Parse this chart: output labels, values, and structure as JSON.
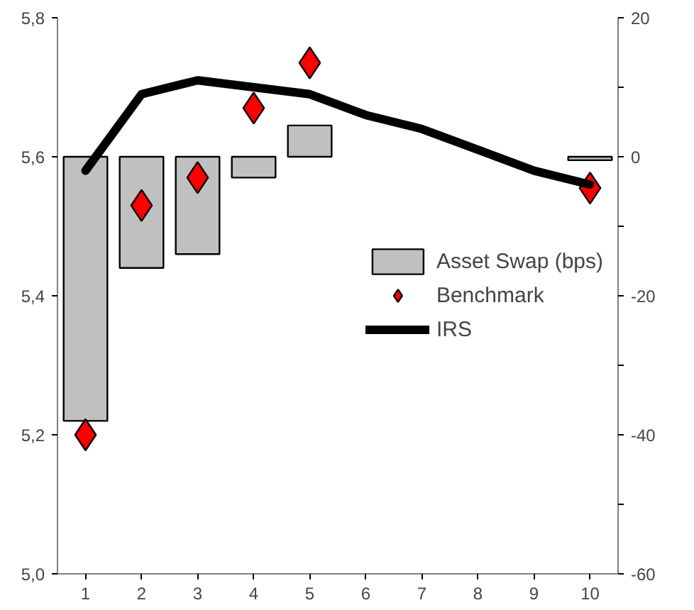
{
  "chart_data": {
    "type": "bar",
    "categories": [
      "1",
      "2",
      "3",
      "4",
      "5",
      "6",
      "7",
      "8",
      "9",
      "10"
    ],
    "series": [
      {
        "name": "Asset Swap (bps)",
        "axis": "y2",
        "color": "#c0c0c0",
        "values": [
          -38,
          -16,
          -14,
          -3,
          4.5,
          null,
          null,
          null,
          null,
          -0.5
        ]
      },
      {
        "name": "Benchmark",
        "type": "scatter",
        "marker": "diamond",
        "color": "#ff0000",
        "values": [
          5.2,
          5.53,
          5.57,
          5.67,
          5.735,
          null,
          null,
          null,
          null,
          5.555
        ]
      },
      {
        "name": "IRS",
        "type": "line",
        "color": "#000000",
        "values": [
          5.58,
          5.69,
          5.71,
          5.7,
          5.69,
          5.66,
          5.64,
          5.61,
          5.58,
          5.56
        ]
      }
    ],
    "ylim": [
      5.0,
      5.8
    ],
    "yticks": [
      {
        "value": 5.0,
        "label": "5,0"
      },
      {
        "value": 5.2,
        "label": "5,2"
      },
      {
        "value": 5.4,
        "label": "5,4"
      },
      {
        "value": 5.6,
        "label": "5,6"
      },
      {
        "value": 5.8,
        "label": "5,8"
      }
    ],
    "y2lim": [
      -60,
      20
    ],
    "y2ticks": [
      -60,
      {
        "value": -50,
        "label": null
      },
      -40,
      {
        "value": -30,
        "label": null
      },
      -20,
      {
        "value": -10,
        "label": null
      },
      0,
      {
        "value": 10,
        "label": null
      },
      20
    ],
    "legend": "right"
  }
}
